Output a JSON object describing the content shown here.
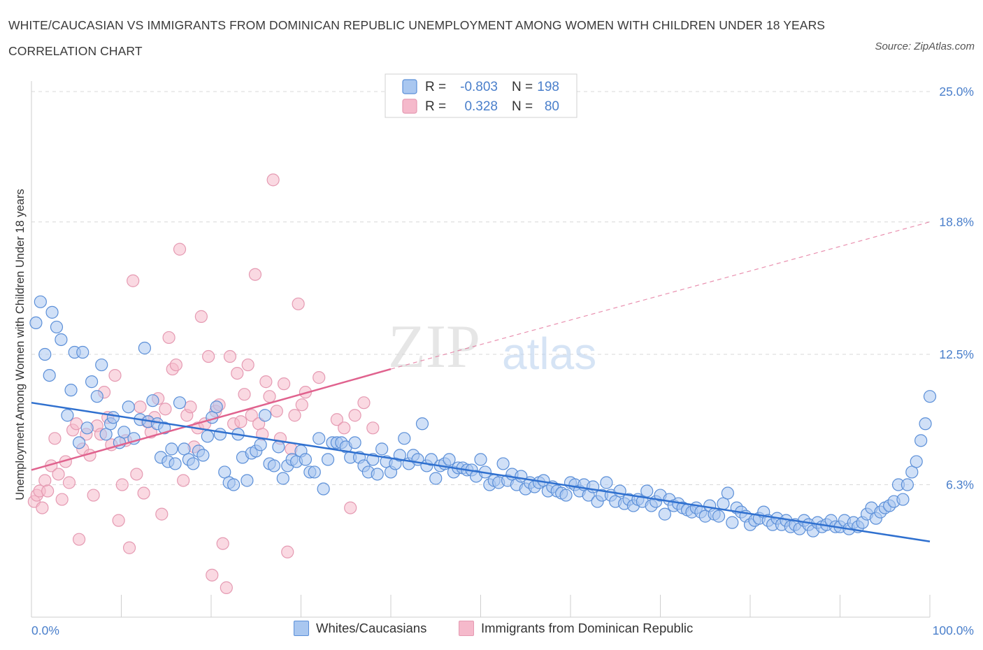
{
  "title": "WHITE/CAUCASIAN VS IMMIGRANTS FROM DOMINICAN REPUBLIC UNEMPLOYMENT AMONG WOMEN WITH CHILDREN UNDER 18 YEARS CORRELATION CHART",
  "source": "Source: ZipAtlas.com",
  "watermark": {
    "zip": "ZIP",
    "atlas": "atlas"
  },
  "colors": {
    "blue_fill": "#a9c7f0",
    "blue_stroke": "#5b8fd8",
    "blue_line": "#2f70cf",
    "pink_fill": "#f5b9cb",
    "pink_stroke": "#e59ab2",
    "pink_line": "#e0628e",
    "tick_label": "#4a7fcb",
    "grid": "#d9d9d9"
  },
  "legend": {
    "rows": [
      {
        "r_label": "R =",
        "r_value": "-0.803",
        "n_label": "N =",
        "n_value": "198"
      },
      {
        "r_label": "R =",
        "r_value": "0.328",
        "n_label": "N =",
        "n_value": "80"
      }
    ]
  },
  "bottom_legend": [
    "Whites/Caucasians",
    "Immigrants from Dominican Republic"
  ],
  "chart_data": {
    "type": "scatter",
    "title": "WHITE/CAUCASIAN VS IMMIGRANTS FROM DOMINICAN REPUBLIC UNEMPLOYMENT AMONG WOMEN WITH CHILDREN UNDER 18 YEARS CORRELATION CHART",
    "xlabel": "",
    "ylabel": "Unemployment Among Women with Children Under 18 years",
    "xlim": [
      0,
      100
    ],
    "ylim": [
      0,
      25.5
    ],
    "x_tick_labels": [
      "0.0%",
      "100.0%"
    ],
    "y_ticks": [
      6.3,
      12.5,
      18.8,
      25.0
    ],
    "y_tick_labels": [
      "6.3%",
      "12.5%",
      "18.8%",
      "25.0%"
    ],
    "grid": true,
    "legend_position": "top-center",
    "series": [
      {
        "name": "Whites/Caucasians",
        "r": -0.803,
        "n": 198,
        "trend": {
          "x": [
            0,
            100
          ],
          "y": [
            10.2,
            3.6
          ]
        },
        "points": [
          [
            0.5,
            14.0
          ],
          [
            1,
            15.0
          ],
          [
            1.5,
            12.5
          ],
          [
            2,
            11.5
          ],
          [
            2.3,
            14.5
          ],
          [
            2.8,
            13.8
          ],
          [
            3.3,
            13.2
          ],
          [
            4,
            9.6
          ],
          [
            4.4,
            10.8
          ],
          [
            4.8,
            12.6
          ],
          [
            5.3,
            8.3
          ],
          [
            5.7,
            12.6
          ],
          [
            6.2,
            9.0
          ],
          [
            6.7,
            11.2
          ],
          [
            7.3,
            10.5
          ],
          [
            7.8,
            12.0
          ],
          [
            8.3,
            8.7
          ],
          [
            8.8,
            9.2
          ],
          [
            9.1,
            9.5
          ],
          [
            9.8,
            8.3
          ],
          [
            10.3,
            8.8
          ],
          [
            10.8,
            10.0
          ],
          [
            11.4,
            8.5
          ],
          [
            12.1,
            9.4
          ],
          [
            12.6,
            12.8
          ],
          [
            13.0,
            9.3
          ],
          [
            13.5,
            10.3
          ],
          [
            14.0,
            9.2
          ],
          [
            14.4,
            7.6
          ],
          [
            14.8,
            9.0
          ],
          [
            15.2,
            7.4
          ],
          [
            15.6,
            8.0
          ],
          [
            16.0,
            7.3
          ],
          [
            16.5,
            10.2
          ],
          [
            17.0,
            8.0
          ],
          [
            17.5,
            7.5
          ],
          [
            18.0,
            7.3
          ],
          [
            18.6,
            7.9
          ],
          [
            19.1,
            7.7
          ],
          [
            19.6,
            8.6
          ],
          [
            20.1,
            9.5
          ],
          [
            20.6,
            10.0
          ],
          [
            21.0,
            8.7
          ],
          [
            21.5,
            6.9
          ],
          [
            22.0,
            6.4
          ],
          [
            22.5,
            6.3
          ],
          [
            23.0,
            8.7
          ],
          [
            23.5,
            7.6
          ],
          [
            24.0,
            6.5
          ],
          [
            24.5,
            7.8
          ],
          [
            25.0,
            7.9
          ],
          [
            25.5,
            8.2
          ],
          [
            26.0,
            9.6
          ],
          [
            26.5,
            7.3
          ],
          [
            27.0,
            7.2
          ],
          [
            27.5,
            8.1
          ],
          [
            28.0,
            6.6
          ],
          [
            28.5,
            7.2
          ],
          [
            29.0,
            7.5
          ],
          [
            29.5,
            7.4
          ],
          [
            30.0,
            7.9
          ],
          [
            30.5,
            7.5
          ],
          [
            31.0,
            6.9
          ],
          [
            31.5,
            6.9
          ],
          [
            32.0,
            8.5
          ],
          [
            32.5,
            6.1
          ],
          [
            33.0,
            7.5
          ],
          [
            33.5,
            8.3
          ],
          [
            34.0,
            8.3
          ],
          [
            34.5,
            8.3
          ],
          [
            35.0,
            8.1
          ],
          [
            35.5,
            7.6
          ],
          [
            36.0,
            8.3
          ],
          [
            36.5,
            7.6
          ],
          [
            37.0,
            7.2
          ],
          [
            37.5,
            6.9
          ],
          [
            38.0,
            7.5
          ],
          [
            38.5,
            6.8
          ],
          [
            39.0,
            8.0
          ],
          [
            39.5,
            7.4
          ],
          [
            40.0,
            6.9
          ],
          [
            40.5,
            7.3
          ],
          [
            41.0,
            7.7
          ],
          [
            41.5,
            8.5
          ],
          [
            42.0,
            7.3
          ],
          [
            42.5,
            7.7
          ],
          [
            43.0,
            7.5
          ],
          [
            43.5,
            9.2
          ],
          [
            44.0,
            7.2
          ],
          [
            44.5,
            7.5
          ],
          [
            45.0,
            6.6
          ],
          [
            45.5,
            7.2
          ],
          [
            46.0,
            7.3
          ],
          [
            46.5,
            7.5
          ],
          [
            47.0,
            6.9
          ],
          [
            47.5,
            7.1
          ],
          [
            48.0,
            7.1
          ],
          [
            48.5,
            7.0
          ],
          [
            49.0,
            7.0
          ],
          [
            49.5,
            6.7
          ],
          [
            50.0,
            7.5
          ],
          [
            50.5,
            6.9
          ],
          [
            51.0,
            6.3
          ],
          [
            51.5,
            6.5
          ],
          [
            52.0,
            6.4
          ],
          [
            52.5,
            7.3
          ],
          [
            53.0,
            6.5
          ],
          [
            53.5,
            6.8
          ],
          [
            54.0,
            6.3
          ],
          [
            54.5,
            6.7
          ],
          [
            55.0,
            6.1
          ],
          [
            55.5,
            6.4
          ],
          [
            56.0,
            6.2
          ],
          [
            56.5,
            6.4
          ],
          [
            57.0,
            6.5
          ],
          [
            57.5,
            6.0
          ],
          [
            58.0,
            6.2
          ],
          [
            58.5,
            6.0
          ],
          [
            59.0,
            5.9
          ],
          [
            59.5,
            5.8
          ],
          [
            60.0,
            6.4
          ],
          [
            60.5,
            6.3
          ],
          [
            61.0,
            6.0
          ],
          [
            61.5,
            6.3
          ],
          [
            62.0,
            5.8
          ],
          [
            62.5,
            6.2
          ],
          [
            63.0,
            5.5
          ],
          [
            63.5,
            5.8
          ],
          [
            64.0,
            6.4
          ],
          [
            64.5,
            5.8
          ],
          [
            65.0,
            5.5
          ],
          [
            65.5,
            6.0
          ],
          [
            66.0,
            5.4
          ],
          [
            66.5,
            5.6
          ],
          [
            67.0,
            5.3
          ],
          [
            67.5,
            5.6
          ],
          [
            68.0,
            5.5
          ],
          [
            68.5,
            6.0
          ],
          [
            69.0,
            5.3
          ],
          [
            69.5,
            5.5
          ],
          [
            70.0,
            5.8
          ],
          [
            70.5,
            4.9
          ],
          [
            71.0,
            5.6
          ],
          [
            71.5,
            5.3
          ],
          [
            72.0,
            5.4
          ],
          [
            72.5,
            5.2
          ],
          [
            73.0,
            5.1
          ],
          [
            73.5,
            5.0
          ],
          [
            74.0,
            5.2
          ],
          [
            74.5,
            5.0
          ],
          [
            75.0,
            4.8
          ],
          [
            75.5,
            5.3
          ],
          [
            76.0,
            4.9
          ],
          [
            76.5,
            4.8
          ],
          [
            77.0,
            5.4
          ],
          [
            77.5,
            5.9
          ],
          [
            78.0,
            4.5
          ],
          [
            78.5,
            5.2
          ],
          [
            79.0,
            5.0
          ],
          [
            79.5,
            4.8
          ],
          [
            80.0,
            4.4
          ],
          [
            80.5,
            4.6
          ],
          [
            81.0,
            4.7
          ],
          [
            81.5,
            5.0
          ],
          [
            82.0,
            4.6
          ],
          [
            82.5,
            4.4
          ],
          [
            83.0,
            4.7
          ],
          [
            83.5,
            4.4
          ],
          [
            84.0,
            4.6
          ],
          [
            84.5,
            4.3
          ],
          [
            85.0,
            4.4
          ],
          [
            85.5,
            4.2
          ],
          [
            86.0,
            4.6
          ],
          [
            86.5,
            4.4
          ],
          [
            87.0,
            4.1
          ],
          [
            87.5,
            4.5
          ],
          [
            88.0,
            4.3
          ],
          [
            88.5,
            4.4
          ],
          [
            89.0,
            4.6
          ],
          [
            89.5,
            4.3
          ],
          [
            90.0,
            4.3
          ],
          [
            90.5,
            4.6
          ],
          [
            91.0,
            4.2
          ],
          [
            91.5,
            4.5
          ],
          [
            92.0,
            4.3
          ],
          [
            92.5,
            4.5
          ],
          [
            93.0,
            4.9
          ],
          [
            93.5,
            5.2
          ],
          [
            94.0,
            4.7
          ],
          [
            94.5,
            5.0
          ],
          [
            95.0,
            5.2
          ],
          [
            95.5,
            5.3
          ],
          [
            96.0,
            5.5
          ],
          [
            96.5,
            6.3
          ],
          [
            97.0,
            5.6
          ],
          [
            97.5,
            6.3
          ],
          [
            98.0,
            6.9
          ],
          [
            98.5,
            7.4
          ],
          [
            99.0,
            8.4
          ],
          [
            99.5,
            9.2
          ],
          [
            100,
            10.5
          ]
        ]
      },
      {
        "name": "Immigrants from Dominican Republic",
        "r": 0.328,
        "n": 80,
        "trend": {
          "x": [
            0,
            40
          ],
          "y": [
            7.0,
            11.8
          ]
        },
        "trend_extension": {
          "x": [
            40,
            100
          ],
          "y": [
            11.8,
            18.8
          ]
        },
        "points": [
          [
            0.3,
            5.5
          ],
          [
            0.6,
            5.8
          ],
          [
            0.9,
            6.0
          ],
          [
            1.2,
            5.2
          ],
          [
            1.5,
            6.5
          ],
          [
            1.8,
            6.0
          ],
          [
            2.2,
            7.2
          ],
          [
            2.6,
            8.5
          ],
          [
            3.0,
            6.8
          ],
          [
            3.4,
            5.6
          ],
          [
            3.8,
            7.4
          ],
          [
            4.2,
            6.4
          ],
          [
            4.6,
            8.9
          ],
          [
            5.0,
            9.2
          ],
          [
            5.3,
            3.7
          ],
          [
            5.7,
            8.0
          ],
          [
            6.1,
            8.7
          ],
          [
            6.5,
            7.7
          ],
          [
            6.9,
            5.8
          ],
          [
            7.3,
            9.1
          ],
          [
            7.7,
            8.7
          ],
          [
            8.1,
            10.7
          ],
          [
            8.5,
            9.5
          ],
          [
            8.9,
            8.2
          ],
          [
            9.3,
            11.5
          ],
          [
            9.7,
            4.6
          ],
          [
            10.1,
            6.3
          ],
          [
            10.5,
            8.4
          ],
          [
            10.9,
            3.3
          ],
          [
            11.3,
            16.0
          ],
          [
            11.7,
            6.8
          ],
          [
            12.1,
            10.0
          ],
          [
            12.5,
            5.9
          ],
          [
            12.9,
            9.3
          ],
          [
            13.3,
            8.8
          ],
          [
            13.7,
            9.5
          ],
          [
            14.1,
            10.4
          ],
          [
            14.5,
            4.9
          ],
          [
            14.9,
            9.9
          ],
          [
            15.3,
            13.3
          ],
          [
            15.7,
            11.8
          ],
          [
            16.1,
            12.0
          ],
          [
            16.5,
            17.5
          ],
          [
            16.9,
            6.5
          ],
          [
            17.3,
            9.6
          ],
          [
            17.7,
            10.0
          ],
          [
            18.1,
            8.1
          ],
          [
            18.5,
            9.0
          ],
          [
            18.9,
            14.3
          ],
          [
            19.3,
            9.2
          ],
          [
            19.7,
            12.4
          ],
          [
            20.1,
            2.0
          ],
          [
            20.5,
            9.8
          ],
          [
            20.9,
            10.1
          ],
          [
            21.3,
            3.5
          ],
          [
            21.7,
            1.4
          ],
          [
            22.1,
            12.4
          ],
          [
            22.5,
            9.2
          ],
          [
            22.9,
            11.6
          ],
          [
            23.3,
            9.3
          ],
          [
            23.7,
            10.6
          ],
          [
            24.1,
            12.0
          ],
          [
            24.5,
            9.6
          ],
          [
            24.9,
            16.3
          ],
          [
            25.3,
            9.2
          ],
          [
            25.7,
            8.7
          ],
          [
            26.1,
            11.2
          ],
          [
            26.5,
            10.5
          ],
          [
            26.9,
            20.8
          ],
          [
            27.3,
            9.8
          ],
          [
            27.7,
            8.5
          ],
          [
            28.1,
            11.1
          ],
          [
            28.5,
            3.1
          ],
          [
            28.9,
            8.0
          ],
          [
            29.3,
            9.6
          ],
          [
            29.7,
            14.9
          ],
          [
            30.1,
            10.1
          ],
          [
            30.5,
            10.7
          ],
          [
            32.0,
            11.4
          ],
          [
            34.0,
            9.4
          ],
          [
            34.8,
            9.0
          ],
          [
            35.5,
            5.2
          ],
          [
            36.0,
            9.6
          ],
          [
            37.0,
            10.2
          ],
          [
            38.0,
            9.0
          ]
        ]
      }
    ]
  }
}
